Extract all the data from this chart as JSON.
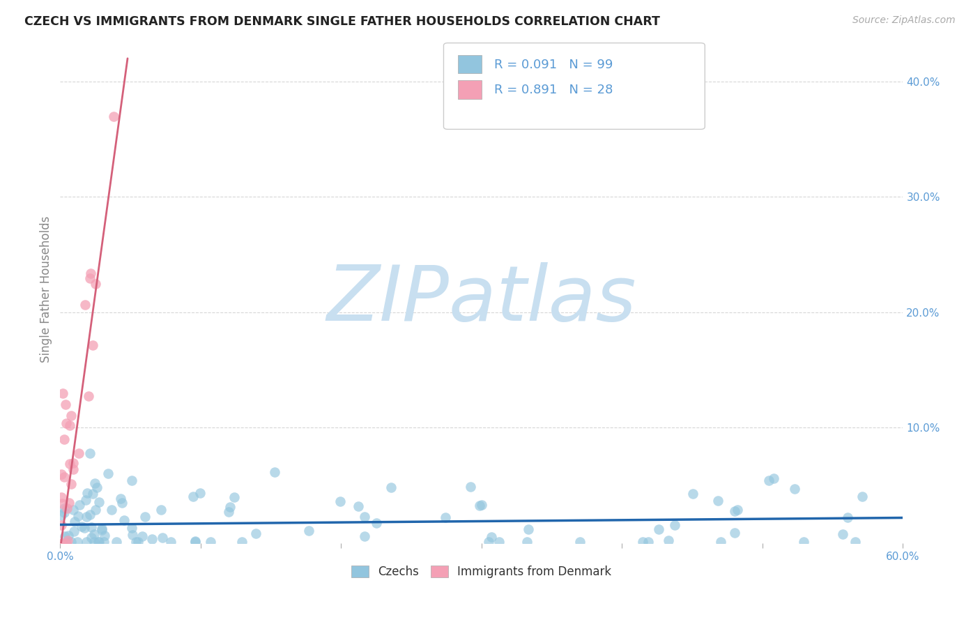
{
  "title": "CZECH VS IMMIGRANTS FROM DENMARK SINGLE FATHER HOUSEHOLDS CORRELATION CHART",
  "source": "Source: ZipAtlas.com",
  "ylabel": "Single Father Households",
  "xlim": [
    0.0,
    0.6
  ],
  "ylim": [
    0.0,
    0.44
  ],
  "xtick_pos": [
    0.0,
    0.1,
    0.2,
    0.3,
    0.4,
    0.5,
    0.6
  ],
  "xtick_labels": [
    "0.0%",
    "",
    "",
    "",
    "",
    "",
    "60.0%"
  ],
  "ytick_right": [
    0.1,
    0.2,
    0.3,
    0.4
  ],
  "ytick_labels_right": [
    "10.0%",
    "20.0%",
    "30.0%",
    "40.0%"
  ],
  "blue_color": "#92c5de",
  "blue_line_color": "#2166ac",
  "pink_color": "#f4a0b5",
  "pink_line_color": "#d4607a",
  "title_color": "#222222",
  "axis_label_color": "#5b9bd5",
  "bg_color": "#ffffff",
  "grid_color": "#cccccc",
  "watermark_color": "#c8dff0",
  "legend_R1": "R = 0.091",
  "legend_N1": "N = 99",
  "legend_R2": "R = 0.891",
  "legend_N2": "N = 28"
}
